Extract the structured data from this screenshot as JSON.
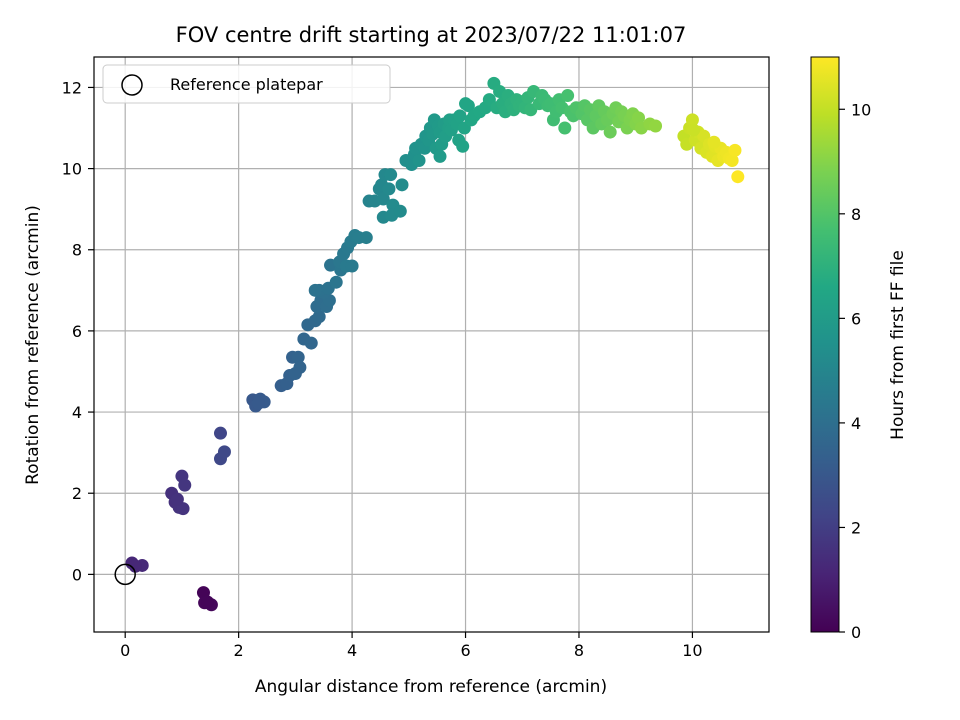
{
  "chart_data": {
    "type": "scatter",
    "title": "FOV centre drift starting at 2023/07/22 11:01:07",
    "xlabel": "Angular distance from reference (arcmin)",
    "ylabel": "Rotation from reference (arcmin)",
    "xlim": [
      -0.55,
      11.35
    ],
    "ylim": [
      -1.42,
      12.75
    ],
    "xticks": [
      0,
      2,
      4,
      6,
      8,
      10
    ],
    "yticks": [
      0,
      2,
      4,
      6,
      8,
      10,
      12
    ],
    "grid": true,
    "colormap": "viridis",
    "colorbar": {
      "label": "Hours from first FF file",
      "range": [
        0,
        11
      ],
      "ticks": [
        0,
        2,
        4,
        6,
        8,
        10
      ]
    },
    "legend": {
      "position": "top-left",
      "entries": [
        {
          "label": "Reference platepar",
          "marker": "hollow-circle"
        }
      ]
    },
    "reference_point": {
      "x": 0,
      "y": 0,
      "label": "Reference platepar"
    },
    "points_columns": [
      "x",
      "y",
      "hours"
    ],
    "points": [
      [
        0.12,
        0.28,
        1.2
      ],
      [
        0.3,
        0.22,
        1.3
      ],
      [
        0.18,
        0.2,
        1.25
      ],
      [
        1.38,
        -0.45,
        0.1
      ],
      [
        1.4,
        -0.7,
        0.15
      ],
      [
        1.52,
        -0.75,
        0.2
      ],
      [
        1.45,
        -0.68,
        0.12
      ],
      [
        0.82,
        2.0,
        1.5
      ],
      [
        0.88,
        1.78,
        1.55
      ],
      [
        0.95,
        1.65,
        1.6
      ],
      [
        1.02,
        1.62,
        1.65
      ],
      [
        0.92,
        1.85,
        1.58
      ],
      [
        1.0,
        2.42,
        1.7
      ],
      [
        1.05,
        2.2,
        1.72
      ],
      [
        1.68,
        3.48,
        2.3
      ],
      [
        1.68,
        2.85,
        2.35
      ],
      [
        1.75,
        3.02,
        2.4
      ],
      [
        2.25,
        4.3,
        3.0
      ],
      [
        2.3,
        4.15,
        3.05
      ],
      [
        2.38,
        4.32,
        3.1
      ],
      [
        2.45,
        4.25,
        3.15
      ],
      [
        2.35,
        4.22,
        3.08
      ],
      [
        2.75,
        4.65,
        3.3
      ],
      [
        2.85,
        4.7,
        3.35
      ],
      [
        2.9,
        4.9,
        3.4
      ],
      [
        2.95,
        5.35,
        3.45
      ],
      [
        3.05,
        5.35,
        3.5
      ],
      [
        3.08,
        5.1,
        3.52
      ],
      [
        3.0,
        4.95,
        3.48
      ],
      [
        3.15,
        5.8,
        3.6
      ],
      [
        3.28,
        5.7,
        3.65
      ],
      [
        3.22,
        6.15,
        3.7
      ],
      [
        3.35,
        6.25,
        3.75
      ],
      [
        3.42,
        6.35,
        3.8
      ],
      [
        3.38,
        6.6,
        3.85
      ],
      [
        3.45,
        6.75,
        3.9
      ],
      [
        3.55,
        6.6,
        3.95
      ],
      [
        3.6,
        6.75,
        4.0
      ],
      [
        3.5,
        6.95,
        4.05
      ],
      [
        3.42,
        7.0,
        4.1
      ],
      [
        3.58,
        7.05,
        4.15
      ],
      [
        3.35,
        7.0,
        4.12
      ],
      [
        3.62,
        7.62,
        4.2
      ],
      [
        3.72,
        7.2,
        4.25
      ],
      [
        3.8,
        7.5,
        4.3
      ],
      [
        3.78,
        7.7,
        4.35
      ],
      [
        3.85,
        7.9,
        4.4
      ],
      [
        3.92,
        8.05,
        4.45
      ],
      [
        3.9,
        7.6,
        4.48
      ],
      [
        4.0,
        7.6,
        4.5
      ],
      [
        3.98,
        8.2,
        4.55
      ],
      [
        4.05,
        8.35,
        4.6
      ],
      [
        4.12,
        8.3,
        4.65
      ],
      [
        4.25,
        8.3,
        4.7
      ],
      [
        4.3,
        9.2,
        4.9
      ],
      [
        4.4,
        9.2,
        4.95
      ],
      [
        4.48,
        9.5,
        5.0
      ],
      [
        4.55,
        9.25,
        5.05
      ],
      [
        4.52,
        9.6,
        5.08
      ],
      [
        4.58,
        9.85,
        5.1
      ],
      [
        4.65,
        9.5,
        5.15
      ],
      [
        4.68,
        9.85,
        5.2
      ],
      [
        4.72,
        9.1,
        5.22
      ],
      [
        4.55,
        8.8,
        5.12
      ],
      [
        4.7,
        8.85,
        5.18
      ],
      [
        4.85,
        8.95,
        5.25
      ],
      [
        4.88,
        9.6,
        5.3
      ],
      [
        4.95,
        10.2,
        5.4
      ],
      [
        5.05,
        10.1,
        5.45
      ],
      [
        5.1,
        10.35,
        5.5
      ],
      [
        5.12,
        10.5,
        5.55
      ],
      [
        5.18,
        10.2,
        5.58
      ],
      [
        5.22,
        10.6,
        5.6
      ],
      [
        5.28,
        10.5,
        5.65
      ],
      [
        5.3,
        10.8,
        5.7
      ],
      [
        5.35,
        10.7,
        5.75
      ],
      [
        5.38,
        11.0,
        5.8
      ],
      [
        5.42,
        10.85,
        5.85
      ],
      [
        5.45,
        11.2,
        5.9
      ],
      [
        5.48,
        10.5,
        5.92
      ],
      [
        5.52,
        11.05,
        5.95
      ],
      [
        5.55,
        10.9,
        6.0
      ],
      [
        5.58,
        10.6,
        6.02
      ],
      [
        5.62,
        11.1,
        6.05
      ],
      [
        5.65,
        10.8,
        6.1
      ],
      [
        5.7,
        11.0,
        6.15
      ],
      [
        5.72,
        11.2,
        6.2
      ],
      [
        5.75,
        10.95,
        6.22
      ],
      [
        5.8,
        11.2,
        6.25
      ],
      [
        5.55,
        10.3,
        5.98
      ],
      [
        5.85,
        11.1,
        6.3
      ],
      [
        5.88,
        10.7,
        6.32
      ],
      [
        5.9,
        11.3,
        6.35
      ],
      [
        5.95,
        10.55,
        6.38
      ],
      [
        5.98,
        11.0,
        6.4
      ],
      [
        6.0,
        11.6,
        6.45
      ],
      [
        6.05,
        11.55,
        6.48
      ],
      [
        6.1,
        11.2,
        6.5
      ],
      [
        6.15,
        11.3,
        6.55
      ],
      [
        6.25,
        11.4,
        6.6
      ],
      [
        6.35,
        11.5,
        6.65
      ],
      [
        6.42,
        11.7,
        6.7
      ],
      [
        6.5,
        12.1,
        6.75
      ],
      [
        6.55,
        11.5,
        6.78
      ],
      [
        6.6,
        11.9,
        6.8
      ],
      [
        6.65,
        11.6,
        6.85
      ],
      [
        6.7,
        11.4,
        6.88
      ],
      [
        6.75,
        11.8,
        6.9
      ],
      [
        6.8,
        11.6,
        6.95
      ],
      [
        6.85,
        11.45,
        7.0
      ],
      [
        6.9,
        11.7,
        7.05
      ],
      [
        6.95,
        11.55,
        7.08
      ],
      [
        7.0,
        11.65,
        7.1
      ],
      [
        7.05,
        11.5,
        7.15
      ],
      [
        7.1,
        11.75,
        7.2
      ],
      [
        7.15,
        11.45,
        7.25
      ],
      [
        7.2,
        11.9,
        7.3
      ],
      [
        7.3,
        11.6,
        7.35
      ],
      [
        7.35,
        11.8,
        7.4
      ],
      [
        7.4,
        11.7,
        7.45
      ],
      [
        7.45,
        11.55,
        7.5
      ],
      [
        7.5,
        11.6,
        7.55
      ],
      [
        7.55,
        11.2,
        7.58
      ],
      [
        7.6,
        11.4,
        7.6
      ],
      [
        7.65,
        11.7,
        7.65
      ],
      [
        7.7,
        11.5,
        7.7
      ],
      [
        7.75,
        11.0,
        7.72
      ],
      [
        7.8,
        11.8,
        7.75
      ],
      [
        7.85,
        11.4,
        7.8
      ],
      [
        7.9,
        11.3,
        7.85
      ],
      [
        7.95,
        11.5,
        7.9
      ],
      [
        8.05,
        11.35,
        8.0
      ],
      [
        8.1,
        11.55,
        8.05
      ],
      [
        8.15,
        11.2,
        8.1
      ],
      [
        8.2,
        11.45,
        8.15
      ],
      [
        8.25,
        11.0,
        8.2
      ],
      [
        8.3,
        11.3,
        8.25
      ],
      [
        8.35,
        11.55,
        8.3
      ],
      [
        8.4,
        11.1,
        8.35
      ],
      [
        8.45,
        11.4,
        8.4
      ],
      [
        8.5,
        11.2,
        8.45
      ],
      [
        8.55,
        10.9,
        8.5
      ],
      [
        8.6,
        11.35,
        8.55
      ],
      [
        8.65,
        11.5,
        8.6
      ],
      [
        8.7,
        11.15,
        8.65
      ],
      [
        8.75,
        11.4,
        8.7
      ],
      [
        8.8,
        11.3,
        8.75
      ],
      [
        8.85,
        11.0,
        8.8
      ],
      [
        8.9,
        11.2,
        8.85
      ],
      [
        8.95,
        11.35,
        8.9
      ],
      [
        9.0,
        11.1,
        8.95
      ],
      [
        9.05,
        11.25,
        9.0
      ],
      [
        9.1,
        11.0,
        9.05
      ],
      [
        9.25,
        11.1,
        9.15
      ],
      [
        9.35,
        11.05,
        9.2
      ],
      [
        9.85,
        10.8,
        10.0
      ],
      [
        9.9,
        10.6,
        10.05
      ],
      [
        9.95,
        11.0,
        10.1
      ],
      [
        10.0,
        11.2,
        10.15
      ],
      [
        10.05,
        10.7,
        10.2
      ],
      [
        10.1,
        10.9,
        10.25
      ],
      [
        10.15,
        10.5,
        10.3
      ],
      [
        10.2,
        10.8,
        10.35
      ],
      [
        10.25,
        10.4,
        10.4
      ],
      [
        10.3,
        10.6,
        10.45
      ],
      [
        10.35,
        10.3,
        10.5
      ],
      [
        10.4,
        10.55,
        10.55
      ],
      [
        10.45,
        10.2,
        10.6
      ],
      [
        10.5,
        10.5,
        10.65
      ],
      [
        10.55,
        10.3,
        10.7
      ],
      [
        10.6,
        10.4,
        10.75
      ],
      [
        10.65,
        10.25,
        10.8
      ],
      [
        10.7,
        10.2,
        10.85
      ],
      [
        10.75,
        10.45,
        10.9
      ],
      [
        10.8,
        9.8,
        11.0
      ],
      [
        10.02,
        10.95,
        10.12
      ],
      [
        10.38,
        10.65,
        10.58
      ]
    ]
  }
}
